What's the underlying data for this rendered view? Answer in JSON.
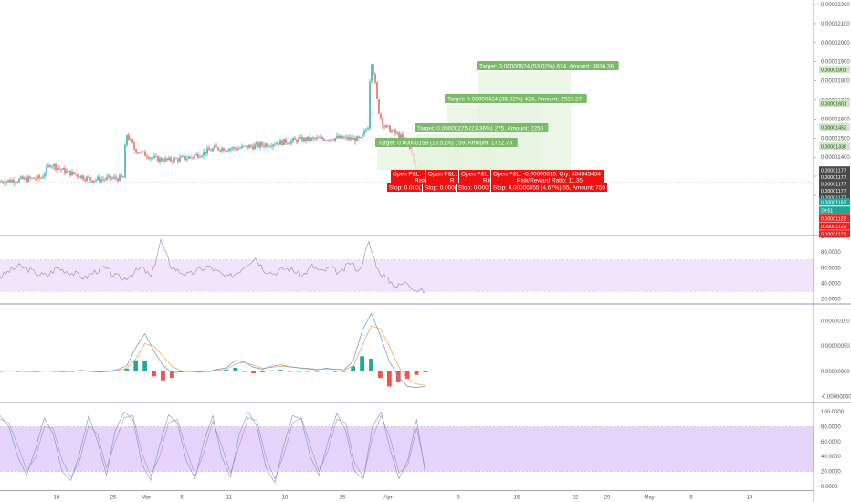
{
  "chart_data": [
    {
      "type": "candlestick",
      "panel": "price",
      "ylim": [
        1.1e-06,
        2.2e-06
      ],
      "y_ticks": [
        "0.00002200",
        "0.00002100",
        "0.00002000",
        "0.00001900",
        "0.00001800",
        "0.00001700",
        "0.00001600",
        "0.00001500",
        "0.00001400",
        "0.00001300",
        "0.00001200"
      ],
      "price_tags": [
        {
          "label": "0.00001801",
          "value": 1.801e-06,
          "color": "#cfe8c5",
          "text_color": "#1e3d12"
        },
        {
          "label": "0.00001601",
          "value": 1.601e-06,
          "color": "#cfe8c5",
          "text_color": "#1e3d12"
        },
        {
          "label": "0.00001452",
          "value": 1.452e-06,
          "color": "#cfe8c5",
          "text_color": "#1e3d12"
        },
        {
          "label": "0.00001336",
          "value": 1.336e-06,
          "color": "#cfe8c5",
          "text_color": "#1e3d12"
        },
        {
          "label": "0.00001177",
          "value": 1.177e-06,
          "color": "#4a4a4a",
          "text_color": "#ffffff"
        },
        {
          "label": "0.00001177",
          "value": 1.177e-06,
          "color": "#4a4a4a",
          "text_color": "#ffffff"
        },
        {
          "label": "0.00001177",
          "value": 1.177e-06,
          "color": "#4a4a4a",
          "text_color": "#ffffff"
        },
        {
          "label": "0.00001177",
          "value": 1.177e-06,
          "color": "#4a4a4a",
          "text_color": "#ffffff"
        },
        {
          "label": "0.00001177",
          "value": 1.177e-06,
          "color": "#4a4a4a",
          "text_color": "#ffffff"
        },
        {
          "label": "0.00001162",
          "value": 1.162e-06,
          "color": "#26a69a",
          "text_color": "#ffffff"
        },
        {
          "label": "29:51",
          "value": 1.15e-06,
          "color": "#26a69a",
          "text_color": "#ffffff"
        },
        {
          "label": "0.00001122",
          "value": 1.122e-06,
          "color": "#ef2222",
          "text_color": "#ffffff"
        },
        {
          "label": "0.00001122",
          "value": 1.122e-06,
          "color": "#ef2222",
          "text_color": "#ffffff"
        },
        {
          "label": "0.00001122",
          "value": 1.122e-06,
          "color": "#ef2222",
          "text_color": "#ffffff"
        }
      ],
      "targets": [
        "Target: 0.00000624 (53.02%) 624, Amount: 3836.36",
        "Target: 0.00000424 (36.02%) 424, Amount: 2927.27",
        "Target: 0.00000275 (23.36%) 275, Amount: 2250",
        "Target: 0.00000159 (13.51%) 159, Amount: 1722.73"
      ],
      "open_pl": [
        "Open P&L:",
        "Open P&L:",
        "Open P&L:",
        "Open P&L: -0.00000015, Qty: 454545454"
      ],
      "risk_labels": [
        "Risk",
        "R",
        "Risk",
        "Risk/Reward Ratio: 11.35"
      ],
      "stops": [
        "Stop: 0.000(",
        "Stop: 0.000(",
        "Stop: 0.000(",
        "Stop: 0.00000055 (4.67%) 55, Amount: 750"
      ],
      "entry_price": 1.177e-06,
      "stop_price": 1.122e-06,
      "target_prices": [
        1.801e-06,
        1.601e-06,
        1.452e-06,
        1.336e-06
      ],
      "colors": {
        "up": "#26a69a",
        "down": "#ef5350",
        "target": "#7cb96a",
        "stop": "#ee1111",
        "zone": "#e6f3df"
      }
    },
    {
      "type": "line",
      "panel": "rsi",
      "series": [
        {
          "values": [
            48,
            56,
            62,
            58,
            52,
            50,
            60,
            56,
            52,
            47,
            55,
            60,
            51,
            45,
            53,
            60,
            48,
            95,
            63,
            55,
            51,
            57,
            62,
            55,
            47,
            53,
            64,
            73,
            57,
            53,
            59,
            57,
            50,
            62,
            55,
            60,
            52,
            67,
            56,
            92,
            57,
            45,
            36,
            42,
            32,
            30
          ]
        }
      ],
      "ylim": [
        15,
        100
      ],
      "band": [
        30,
        70
      ],
      "y_ticks": [
        "100.0000",
        "80.0000",
        "60.0000",
        "40.0000",
        "20.0000"
      ],
      "colors": {
        "line": "#9b86b8",
        "band": "#f1e4fb"
      }
    },
    {
      "type": "line",
      "panel": "macd",
      "series": [
        {
          "values": [
            0.0,
            0.001,
            0.0,
            0.0,
            -0.001,
            0.001,
            0.0,
            -0.001,
            0.0,
            0.002,
            0.0,
            -0.002,
            0.0,
            0.004,
            0.011,
            0.047,
            0.075,
            0.04,
            0.012,
            -0.003,
            -0.001,
            0.0,
            -0.002,
            0.0,
            0.004,
            0.007,
            0.022,
            0.018,
            0.008,
            0.004,
            0.01,
            0.013,
            0.009,
            0.007,
            0.005,
            0.003,
            0.006,
            0.004,
            0.003,
            0.02,
            0.08,
            0.115,
            0.072,
            0.02,
            -0.01,
            -0.03,
            -0.032,
            -0.03
          ]
        },
        {
          "values": [
            0.0,
            0.0,
            0.0,
            0.0,
            0.0,
            0.0,
            0.0,
            0.0,
            0.0,
            0.001,
            0.0,
            -0.001,
            0.0,
            0.002,
            0.006,
            0.025,
            0.055,
            0.05,
            0.03,
            0.01,
            0.001,
            0.0,
            -0.001,
            0.0,
            0.002,
            0.004,
            0.015,
            0.018,
            0.012,
            0.006,
            0.008,
            0.01,
            0.009,
            0.007,
            0.006,
            0.004,
            0.005,
            0.004,
            0.003,
            0.01,
            0.05,
            0.09,
            0.085,
            0.05,
            0.01,
            -0.015,
            -0.025,
            -0.028
          ]
        }
      ],
      "histogram": [
        0.0,
        0.001,
        0.0,
        0.0,
        -0.001,
        0.001,
        0.0,
        -0.001,
        0.0,
        0.001,
        0.0,
        -0.001,
        0.0,
        0.002,
        0.005,
        0.022,
        0.02,
        -0.01,
        -0.018,
        -0.013,
        -0.002,
        0.0,
        -0.001,
        0.0,
        0.002,
        0.003,
        0.007,
        0.0,
        -0.004,
        -0.002,
        0.002,
        0.003,
        0.0,
        0.0,
        -0.001,
        -0.001,
        0.001,
        0.0,
        0.0,
        0.01,
        0.03,
        0.025,
        -0.013,
        -0.03,
        -0.02,
        -0.015,
        -0.007,
        -0.002
      ],
      "ylim": [
        -0.06,
        0.13
      ],
      "y_ticks": [
        {
          "label": "0.00000100",
          "value": 0.1
        },
        {
          "label": "0.00000050",
          "value": 0.05
        },
        {
          "label": "0.00000000",
          "value": 0.0
        },
        {
          "label": "-0.00000050",
          "value": -0.05
        }
      ],
      "colors": {
        "macd": "#5b9bd5",
        "signal": "#f0a04b",
        "hist_up": "#26a69a",
        "hist_down": "#ef5350"
      }
    },
    {
      "type": "line",
      "panel": "stoch_rsi",
      "series": [
        {
          "values": [
            95,
            80,
            40,
            15,
            50,
            92,
            70,
            20,
            8,
            45,
            95,
            60,
            15,
            75,
            100,
            90,
            30,
            8,
            55,
            96,
            85,
            35,
            10,
            60,
            95,
            40,
            12,
            70,
            100,
            80,
            25,
            5,
            55,
            95,
            90,
            40,
            15,
            60,
            98,
            75,
            20,
            10,
            80,
            100,
            50,
            10,
            35,
            90,
            15
          ]
        },
        {
          "values": [
            90,
            85,
            55,
            22,
            38,
            80,
            78,
            35,
            12,
            35,
            82,
            70,
            25,
            60,
            92,
            95,
            45,
            14,
            40,
            85,
            90,
            50,
            15,
            45,
            88,
            55,
            18,
            55,
            92,
            88,
            38,
            10,
            42,
            85,
            92,
            55,
            20,
            48,
            90,
            85,
            32,
            12,
            65,
            95,
            65,
            18,
            28,
            78,
            22
          ]
        }
      ],
      "ylim": [
        -5,
        110
      ],
      "band": [
        20,
        80
      ],
      "y_ticks": [
        "100.0000",
        "80.0000",
        "60.0000",
        "40.0000",
        "20.0000",
        "0.0000"
      ],
      "colors": {
        "k": "#7896c8",
        "d": "#b08bc7",
        "band": "#e6d4fb"
      }
    }
  ],
  "x_axis": {
    "labels": [
      "18",
      "25",
      "Mar",
      "5",
      "11",
      "18",
      "25",
      "Apr",
      "8",
      "15",
      "22",
      "29",
      "May",
      "6",
      "13"
    ]
  }
}
